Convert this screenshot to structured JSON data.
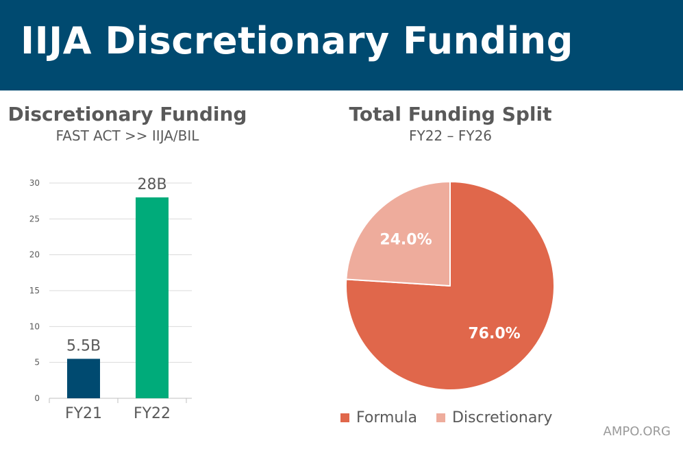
{
  "header": {
    "title": "IIJA Discretionary Funding"
  },
  "bar_section": {
    "title": "Discretionary Funding",
    "subtitle": "FAST ACT >> IIJA/BIL"
  },
  "pie_section": {
    "title": "Total Funding Split",
    "subtitle": "FY22 – FY26"
  },
  "footer": {
    "brand": "AMPO.ORG"
  },
  "colors": {
    "banner": "#004a70",
    "fy21_bar": "#004a70",
    "fy22_bar": "#00ab7a",
    "formula": "#e0674b",
    "discretionary": "#eeac9c"
  },
  "chart_data": [
    {
      "type": "bar",
      "title": "Discretionary Funding",
      "subtitle": "FAST ACT >> IIJA/BIL",
      "categories": [
        "FY21",
        "FY22"
      ],
      "values": [
        5.5,
        28
      ],
      "data_labels": [
        "5.5B",
        "28B"
      ],
      "bar_colors": [
        "#004a70",
        "#00ab7a"
      ],
      "ylim": [
        0,
        30
      ],
      "yticks": [
        0,
        5,
        10,
        15,
        20,
        25,
        30
      ],
      "grid": true,
      "xlabel": "",
      "ylabel": ""
    },
    {
      "type": "pie",
      "title": "Total Funding Split",
      "subtitle": "FY22 – FY26",
      "slices": [
        {
          "label": "Formula",
          "value": 76.0,
          "display": "76.0%",
          "color": "#e0674b"
        },
        {
          "label": "Discretionary",
          "value": 24.0,
          "display": "24.0%",
          "color": "#eeac9c"
        }
      ],
      "legend_position": "bottom"
    }
  ]
}
